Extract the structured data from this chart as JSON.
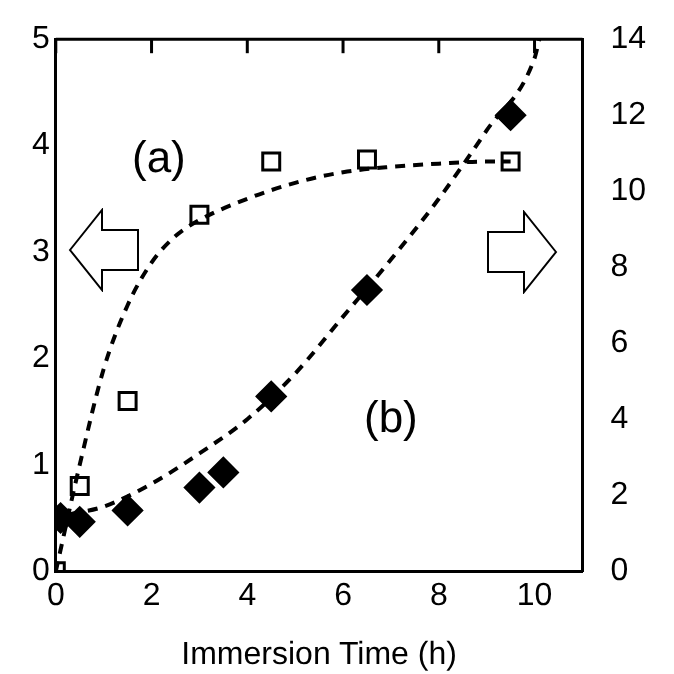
{
  "chart_data": {
    "type": "scatter",
    "xlabel": "Immersion Time (h)",
    "xlim": [
      0,
      11
    ],
    "xticks": [
      0,
      2,
      4,
      6,
      8,
      10
    ],
    "ylim": [
      0,
      5
    ],
    "yticks": [
      0,
      1,
      2,
      3,
      4,
      5
    ],
    "y2lim": [
      0,
      14
    ],
    "y2ticks": [
      0,
      2,
      4,
      6,
      8,
      10,
      12,
      14
    ],
    "grid": false,
    "legend": false,
    "annotations": [
      "(a)",
      "(b)"
    ],
    "series": [
      {
        "marker": "square",
        "color": "#000000",
        "x": [
          0,
          0.5,
          1.5,
          3,
          4.5,
          6.5,
          9.5
        ],
        "values": [
          0,
          0.8,
          1.6,
          3.35,
          3.85,
          3.87,
          3.85
        ]
      },
      {
        "marker": "diamond",
        "axis": "y2",
        "color": "#000000",
        "x": [
          0.1,
          0.5,
          1.5,
          3,
          3.5,
          4.5,
          6.5,
          9.5
        ],
        "values": [
          1.4,
          1.3,
          1.6,
          2.2,
          2.6,
          4.6,
          7.4,
          12.0
        ]
      },
      {
        "type": "line",
        "line_style": "dashed",
        "color": "#000000",
        "x": [
          0,
          0.5,
          1,
          1.5,
          2,
          2.5,
          3,
          4,
          5,
          6,
          7,
          8,
          9,
          9.5
        ],
        "values": [
          0,
          1.0,
          1.9,
          2.5,
          2.9,
          3.15,
          3.3,
          3.5,
          3.65,
          3.75,
          3.8,
          3.83,
          3.85,
          3.85
        ]
      },
      {
        "type": "line",
        "line_style": "dashed",
        "axis": "y2",
        "color": "#000000",
        "x": [
          0.3,
          1,
          2,
          3,
          4,
          5,
          6,
          7,
          8,
          9,
          10,
          10.1
        ],
        "values": [
          1.5,
          1.7,
          2.3,
          3.1,
          4.0,
          5.2,
          6.7,
          8.2,
          9.8,
          11.6,
          13.5,
          14
        ]
      }
    ]
  }
}
